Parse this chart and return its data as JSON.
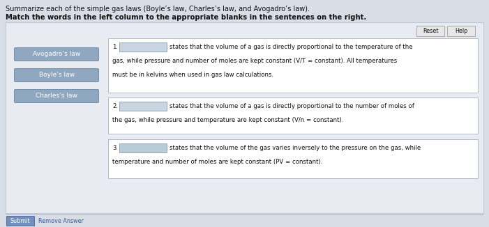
{
  "title_line1": "Summarize each of the simple gas laws (Boyle’s law, Charles’s law, and Avogadro’s law).",
  "title_line2": "Match the words in the left column to the appropriate blanks in the sentences on the right.",
  "bg_page": "#d8dde6",
  "bg_panel": "#e8ecf2",
  "bg_panel_border": "#c0c8d4",
  "left_buttons": [
    "Avogadro’s law",
    "Boyle’s law",
    "Charles’s law"
  ],
  "button_bg": "#8fa8c0",
  "button_text_color": "#ffffff",
  "button_border": "#7090aa",
  "right_box_bg": "#ffffff",
  "right_box_border": "#b0bcc8",
  "blank1_color": "#c8d4e0",
  "blank2_color": "#c8d4e0",
  "blank3_color": "#b8ccd8",
  "reset_text": "Reset",
  "help_text": "Help",
  "util_btn_bg": "#e8e8e8",
  "util_btn_border": "#aaaaaa",
  "submit_text": "Submit",
  "remove_text": "Remove Answer",
  "submit_bg": "#7090b8",
  "submit_text_color": "#ffffff",
  "remove_text_color": "#3355aa",
  "text_color": "#111111",
  "title1_fs": 7.0,
  "title2_fs": 7.2,
  "body_fs": 6.2,
  "btn_fs": 6.5,
  "util_fs": 5.8,
  "box1_lines": [
    "states that the volume of a gas is directly proportional to the temperature of the",
    "gas, while pressure and number of moles are kept constant (V/T = constant). All temperatures",
    "must be in kelvins when used in gas law calculations."
  ],
  "box2_lines": [
    "states that the volume of a gas is directly proportional to the number of moles of",
    "the gas, while pressure and temperature are kept constant (V/n = constant)."
  ],
  "box3_lines": [
    "states that the volume of the gas varies inversely to the pressure on the gas, while",
    "temperature and number of moles are kept constant (PV = constant)."
  ]
}
